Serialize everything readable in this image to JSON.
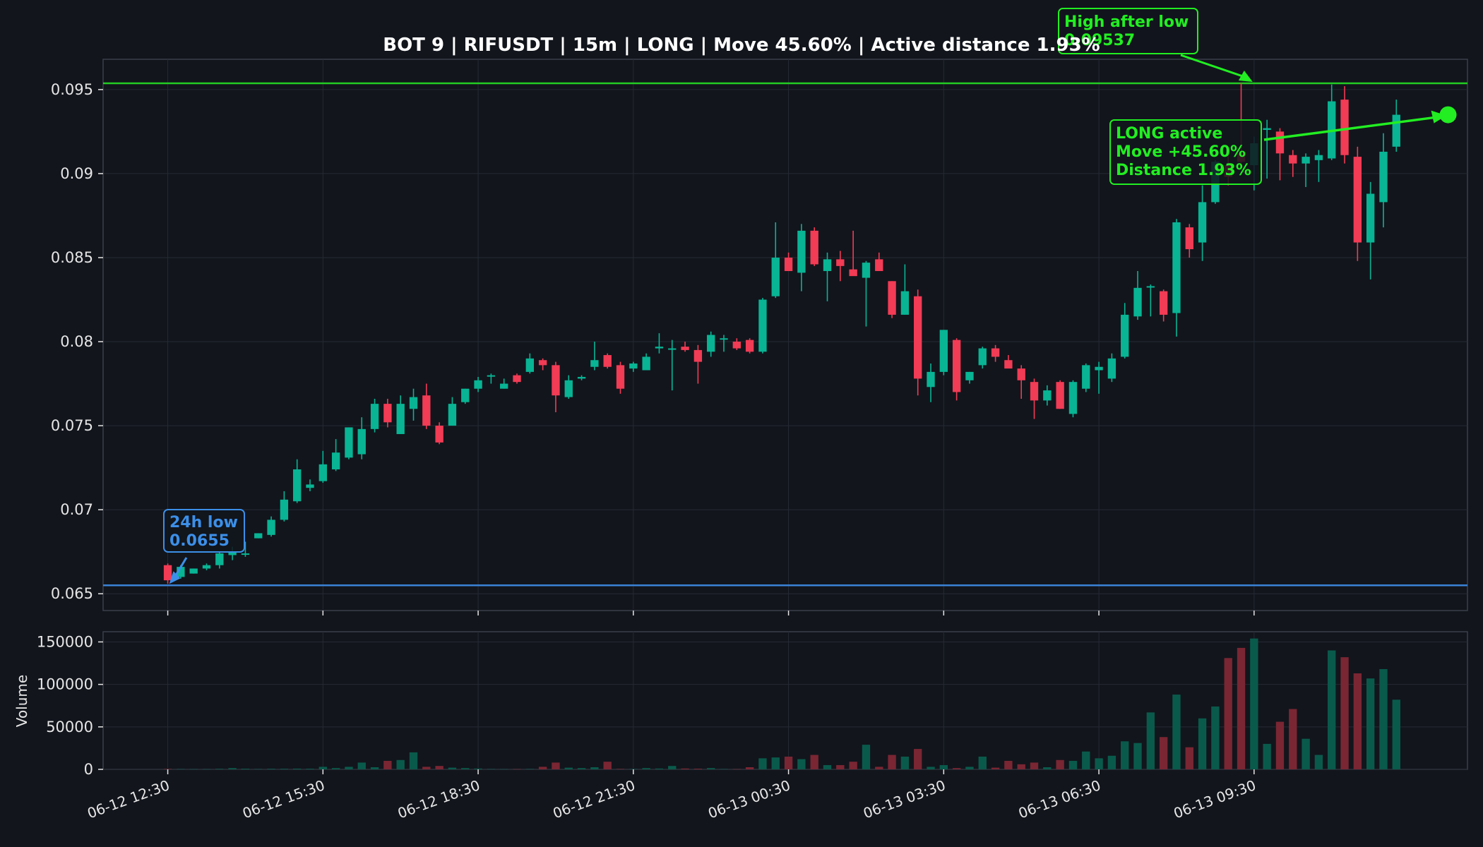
{
  "colors": {
    "background": "#12151c",
    "up": "#08b494",
    "down": "#f23b55",
    "up_volume": "#0a5a4b",
    "down_volume": "#7a2633",
    "low_line": "#3a82d6",
    "high_line": "#22cc22",
    "annotation_green": "#22ee22",
    "annotation_blue": "#3c8fe8",
    "grid": "#262a33",
    "axis_frame": "#3a3f4a",
    "text": "#e6e6e6"
  },
  "chart_data": {
    "type": "candlestick",
    "title": "BOT 9 | RIFUSDT | 15m | LONG | Move 45.60% | Active distance 1.93%",
    "price_axis": {
      "ylim": [
        0.064,
        0.0968
      ],
      "ticks": [
        0.065,
        0.07,
        0.075,
        0.08,
        0.085,
        0.09,
        0.095
      ],
      "tick_labels": [
        "0.065",
        "0.07",
        "0.075",
        "0.08",
        "0.085",
        "0.09",
        "0.095"
      ]
    },
    "volume_axis": {
      "ylabel": "Volume",
      "ylim": [
        0,
        162000
      ],
      "ticks": [
        0,
        50000,
        100000,
        150000
      ],
      "tick_labels": [
        "0",
        "50000",
        "100000",
        "150000"
      ]
    },
    "x_axis": {
      "tick_positions": [
        0,
        12,
        24,
        36,
        48,
        60,
        72,
        84
      ],
      "tick_labels": [
        "06-12 12:30",
        "06-12 15:30",
        "06-12 18:30",
        "06-12 21:30",
        "06-13 00:30",
        "06-13 03:30",
        "06-13 06:30",
        "06-13 09:30"
      ],
      "xlim": [
        -5,
        100.5
      ]
    },
    "grid": true,
    "candles": [
      {
        "o": 0.0667,
        "h": 0.0668,
        "l": 0.0656,
        "c": 0.0658,
        "v": 500
      },
      {
        "o": 0.066,
        "h": 0.0667,
        "l": 0.0659,
        "c": 0.0666,
        "v": 400
      },
      {
        "o": 0.0662,
        "h": 0.0665,
        "l": 0.0662,
        "c": 0.0665,
        "v": 300
      },
      {
        "o": 0.0665,
        "h": 0.0668,
        "l": 0.0664,
        "c": 0.0667,
        "v": 300
      },
      {
        "o": 0.0667,
        "h": 0.0675,
        "l": 0.0665,
        "c": 0.0674,
        "v": 600
      },
      {
        "o": 0.0673,
        "h": 0.0678,
        "l": 0.067,
        "c": 0.0675,
        "v": 1500
      },
      {
        "o": 0.0674,
        "h": 0.0681,
        "l": 0.0672,
        "c": 0.0674,
        "v": 800
      },
      {
        "o": 0.0683,
        "h": 0.0686,
        "l": 0.0683,
        "c": 0.0686,
        "v": 400
      },
      {
        "o": 0.0685,
        "h": 0.0696,
        "l": 0.0684,
        "c": 0.0694,
        "v": 700
      },
      {
        "o": 0.0694,
        "h": 0.0711,
        "l": 0.0693,
        "c": 0.0706,
        "v": 700
      },
      {
        "o": 0.0705,
        "h": 0.073,
        "l": 0.0704,
        "c": 0.0724,
        "v": 900
      },
      {
        "o": 0.0713,
        "h": 0.0718,
        "l": 0.0711,
        "c": 0.0715,
        "v": 800
      },
      {
        "o": 0.0717,
        "h": 0.0735,
        "l": 0.0716,
        "c": 0.0727,
        "v": 3000
      },
      {
        "o": 0.0724,
        "h": 0.0742,
        "l": 0.0723,
        "c": 0.0734,
        "v": 1500
      },
      {
        "o": 0.0731,
        "h": 0.0749,
        "l": 0.073,
        "c": 0.0749,
        "v": 3000
      },
      {
        "o": 0.0733,
        "h": 0.0755,
        "l": 0.073,
        "c": 0.0748,
        "v": 8000
      },
      {
        "o": 0.0748,
        "h": 0.0766,
        "l": 0.0746,
        "c": 0.0763,
        "v": 2500
      },
      {
        "o": 0.0763,
        "h": 0.0766,
        "l": 0.0749,
        "c": 0.0752,
        "v": 10000
      },
      {
        "o": 0.0745,
        "h": 0.0768,
        "l": 0.0745,
        "c": 0.0763,
        "v": 11000
      },
      {
        "o": 0.076,
        "h": 0.0772,
        "l": 0.0753,
        "c": 0.0767,
        "v": 20000
      },
      {
        "o": 0.0768,
        "h": 0.0775,
        "l": 0.0748,
        "c": 0.075,
        "v": 3000
      },
      {
        "o": 0.075,
        "h": 0.0752,
        "l": 0.0739,
        "c": 0.074,
        "v": 4000
      },
      {
        "o": 0.075,
        "h": 0.0767,
        "l": 0.075,
        "c": 0.0763,
        "v": 2000
      },
      {
        "o": 0.0764,
        "h": 0.0772,
        "l": 0.0763,
        "c": 0.0772,
        "v": 1500
      },
      {
        "o": 0.0772,
        "h": 0.0779,
        "l": 0.077,
        "c": 0.0777,
        "v": 1000
      },
      {
        "o": 0.078,
        "h": 0.0781,
        "l": 0.0775,
        "c": 0.078,
        "v": 400
      },
      {
        "o": 0.0772,
        "h": 0.0778,
        "l": 0.0772,
        "c": 0.0775,
        "v": 300
      },
      {
        "o": 0.078,
        "h": 0.0781,
        "l": 0.0775,
        "c": 0.0776,
        "v": 300
      },
      {
        "o": 0.0782,
        "h": 0.0793,
        "l": 0.0781,
        "c": 0.079,
        "v": 500
      },
      {
        "o": 0.0789,
        "h": 0.079,
        "l": 0.0783,
        "c": 0.0786,
        "v": 3000
      },
      {
        "o": 0.0786,
        "h": 0.0788,
        "l": 0.0758,
        "c": 0.0768,
        "v": 8000
      },
      {
        "o": 0.0767,
        "h": 0.078,
        "l": 0.0766,
        "c": 0.0777,
        "v": 2000
      },
      {
        "o": 0.0778,
        "h": 0.078,
        "l": 0.0777,
        "c": 0.0779,
        "v": 1500
      },
      {
        "o": 0.0785,
        "h": 0.08,
        "l": 0.0783,
        "c": 0.0789,
        "v": 2500
      },
      {
        "o": 0.0792,
        "h": 0.0793,
        "l": 0.0784,
        "c": 0.0785,
        "v": 9000
      },
      {
        "o": 0.0786,
        "h": 0.0788,
        "l": 0.0769,
        "c": 0.0772,
        "v": 500
      },
      {
        "o": 0.0784,
        "h": 0.0788,
        "l": 0.0782,
        "c": 0.0787,
        "v": 400
      },
      {
        "o": 0.0783,
        "h": 0.0793,
        "l": 0.0783,
        "c": 0.0791,
        "v": 1500
      },
      {
        "o": 0.0796,
        "h": 0.0805,
        "l": 0.0793,
        "c": 0.0797,
        "v": 1000
      },
      {
        "o": 0.0796,
        "h": 0.0801,
        "l": 0.0771,
        "c": 0.0796,
        "v": 4000
      },
      {
        "o": 0.0797,
        "h": 0.08,
        "l": 0.0794,
        "c": 0.0795,
        "v": 1000
      },
      {
        "o": 0.0795,
        "h": 0.0798,
        "l": 0.0775,
        "c": 0.0788,
        "v": 800
      },
      {
        "o": 0.0794,
        "h": 0.0806,
        "l": 0.0791,
        "c": 0.0804,
        "v": 1500
      },
      {
        "o": 0.0802,
        "h": 0.0804,
        "l": 0.0794,
        "c": 0.0802,
        "v": 400
      },
      {
        "o": 0.08,
        "h": 0.0802,
        "l": 0.0795,
        "c": 0.0796,
        "v": 300
      },
      {
        "o": 0.0801,
        "h": 0.0802,
        "l": 0.0793,
        "c": 0.0794,
        "v": 2500
      },
      {
        "o": 0.0794,
        "h": 0.0826,
        "l": 0.0793,
        "c": 0.0825,
        "v": 13000
      },
      {
        "o": 0.0827,
        "h": 0.0871,
        "l": 0.0826,
        "c": 0.085,
        "v": 14000
      },
      {
        "o": 0.085,
        "h": 0.0853,
        "l": 0.0843,
        "c": 0.0842,
        "v": 15000
      },
      {
        "o": 0.0841,
        "h": 0.087,
        "l": 0.083,
        "c": 0.0866,
        "v": 12000
      },
      {
        "o": 0.0866,
        "h": 0.0868,
        "l": 0.0845,
        "c": 0.0846,
        "v": 17000
      },
      {
        "o": 0.0842,
        "h": 0.0853,
        "l": 0.0824,
        "c": 0.0849,
        "v": 5000
      },
      {
        "o": 0.0849,
        "h": 0.0854,
        "l": 0.0836,
        "c": 0.0845,
        "v": 5000
      },
      {
        "o": 0.0843,
        "h": 0.0866,
        "l": 0.084,
        "c": 0.0839,
        "v": 9000
      },
      {
        "o": 0.0838,
        "h": 0.0848,
        "l": 0.0809,
        "c": 0.0847,
        "v": 29000
      },
      {
        "o": 0.0849,
        "h": 0.0853,
        "l": 0.0843,
        "c": 0.0842,
        "v": 3000
      },
      {
        "o": 0.0836,
        "h": 0.0836,
        "l": 0.0814,
        "c": 0.0816,
        "v": 17000
      },
      {
        "o": 0.0816,
        "h": 0.0846,
        "l": 0.0816,
        "c": 0.083,
        "v": 15000
      },
      {
        "o": 0.0827,
        "h": 0.0831,
        "l": 0.0768,
        "c": 0.0778,
        "v": 24000
      },
      {
        "o": 0.0773,
        "h": 0.0787,
        "l": 0.0764,
        "c": 0.0782,
        "v": 3000
      },
      {
        "o": 0.0782,
        "h": 0.0807,
        "l": 0.078,
        "c": 0.0807,
        "v": 5000
      },
      {
        "o": 0.0801,
        "h": 0.0802,
        "l": 0.0765,
        "c": 0.077,
        "v": 1500
      },
      {
        "o": 0.0777,
        "h": 0.0782,
        "l": 0.0775,
        "c": 0.0782,
        "v": 3000
      },
      {
        "o": 0.0786,
        "h": 0.0797,
        "l": 0.0784,
        "c": 0.0796,
        "v": 15000
      },
      {
        "o": 0.0796,
        "h": 0.0798,
        "l": 0.0788,
        "c": 0.0791,
        "v": 2000
      },
      {
        "o": 0.0789,
        "h": 0.0792,
        "l": 0.0785,
        "c": 0.0784,
        "v": 10000
      },
      {
        "o": 0.0784,
        "h": 0.0786,
        "l": 0.0766,
        "c": 0.0777,
        "v": 6000
      },
      {
        "o": 0.0776,
        "h": 0.0778,
        "l": 0.0754,
        "c": 0.0765,
        "v": 8000
      },
      {
        "o": 0.0765,
        "h": 0.0774,
        "l": 0.0762,
        "c": 0.0771,
        "v": 2500
      },
      {
        "o": 0.0776,
        "h": 0.0777,
        "l": 0.076,
        "c": 0.076,
        "v": 11000
      },
      {
        "o": 0.0757,
        "h": 0.0777,
        "l": 0.0755,
        "c": 0.0776,
        "v": 10000
      },
      {
        "o": 0.0772,
        "h": 0.0787,
        "l": 0.077,
        "c": 0.0786,
        "v": 21000
      },
      {
        "o": 0.0783,
        "h": 0.0788,
        "l": 0.0769,
        "c": 0.0785,
        "v": 13000
      },
      {
        "o": 0.0778,
        "h": 0.0793,
        "l": 0.0776,
        "c": 0.079,
        "v": 16000
      },
      {
        "o": 0.0791,
        "h": 0.0823,
        "l": 0.079,
        "c": 0.0816,
        "v": 33000
      },
      {
        "o": 0.0815,
        "h": 0.0842,
        "l": 0.0813,
        "c": 0.0832,
        "v": 31000
      },
      {
        "o": 0.0833,
        "h": 0.0834,
        "l": 0.0815,
        "c": 0.0833,
        "v": 67000
      },
      {
        "o": 0.083,
        "h": 0.0831,
        "l": 0.0812,
        "c": 0.0816,
        "v": 38000
      },
      {
        "o": 0.0817,
        "h": 0.0873,
        "l": 0.0803,
        "c": 0.0871,
        "v": 88000
      },
      {
        "o": 0.0868,
        "h": 0.087,
        "l": 0.085,
        "c": 0.0855,
        "v": 26000
      },
      {
        "o": 0.0859,
        "h": 0.0893,
        "l": 0.0848,
        "c": 0.0883,
        "v": 60000
      },
      {
        "o": 0.0883,
        "h": 0.0908,
        "l": 0.0882,
        "c": 0.0907,
        "v": 74000
      },
      {
        "o": 0.0905,
        "h": 0.0915,
        "l": 0.0893,
        "c": 0.0898,
        "v": 131000
      },
      {
        "o": 0.0912,
        "h": 0.0954,
        "l": 0.0904,
        "c": 0.0907,
        "v": 143000
      },
      {
        "o": 0.0905,
        "h": 0.0922,
        "l": 0.089,
        "c": 0.0918,
        "v": 154000
      },
      {
        "o": 0.0926,
        "h": 0.0932,
        "l": 0.0897,
        "c": 0.0927,
        "v": 30000
      },
      {
        "o": 0.0925,
        "h": 0.0927,
        "l": 0.0896,
        "c": 0.0912,
        "v": 56000
      },
      {
        "o": 0.0911,
        "h": 0.0914,
        "l": 0.0898,
        "c": 0.0906,
        "v": 71000
      },
      {
        "o": 0.0906,
        "h": 0.0912,
        "l": 0.0892,
        "c": 0.091,
        "v": 36000
      },
      {
        "o": 0.0908,
        "h": 0.0914,
        "l": 0.0895,
        "c": 0.0911,
        "v": 17000
      },
      {
        "o": 0.0909,
        "h": 0.0953,
        "l": 0.0908,
        "c": 0.0943,
        "v": 140000
      },
      {
        "o": 0.0944,
        "h": 0.0952,
        "l": 0.0906,
        "c": 0.0911,
        "v": 132000
      },
      {
        "o": 0.091,
        "h": 0.0916,
        "l": 0.0848,
        "c": 0.0859,
        "v": 113000
      },
      {
        "o": 0.0859,
        "h": 0.0895,
        "l": 0.0837,
        "c": 0.0888,
        "v": 107000
      },
      {
        "o": 0.0883,
        "h": 0.0924,
        "l": 0.0868,
        "c": 0.0913,
        "v": 118000
      },
      {
        "o": 0.0916,
        "h": 0.0944,
        "l": 0.0913,
        "c": 0.0935,
        "v": 82000
      }
    ],
    "reference_lines": [
      {
        "name": "24h low",
        "value": 0.0655
      },
      {
        "name": "High after low",
        "value": 0.09537
      }
    ],
    "annotations": {
      "low": {
        "lines": [
          "24h low",
          "0.0655"
        ],
        "candle_index": 0,
        "price": 0.0655
      },
      "high": {
        "lines": [
          "High after low",
          "0.09537"
        ],
        "candle_index": 84,
        "price": 0.09537
      },
      "active": {
        "lines": [
          "LONG active",
          "Move +45.60%",
          "Distance 1.93%"
        ],
        "candle_index": 99,
        "price": 0.0935
      }
    }
  }
}
